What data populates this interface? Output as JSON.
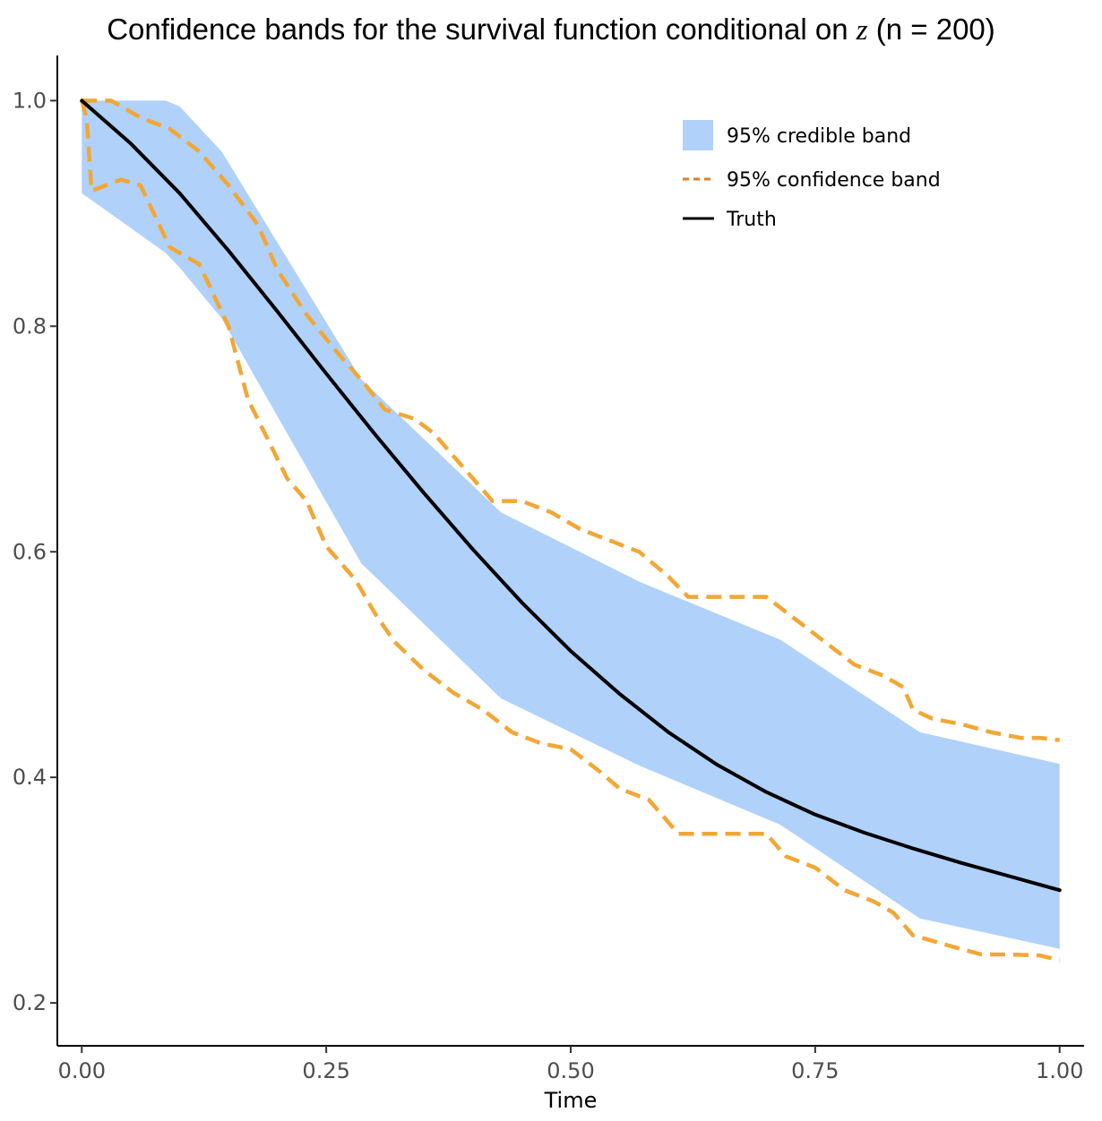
{
  "chart_data": {
    "type": "line",
    "title_prefix": "Confidence bands for the survival function conditional on ",
    "title_var": "z",
    "title_suffix": " (n = 200)",
    "xlabel": "Time",
    "ylabel": "",
    "xlim": [
      -0.025,
      1.025
    ],
    "ylim": [
      0.162,
      1.04
    ],
    "xticks": [
      "0.00",
      "0.25",
      "0.50",
      "0.75",
      "1.00"
    ],
    "yticks": [
      "0.2",
      "0.4",
      "0.6",
      "0.8",
      "1.0"
    ],
    "legend_position": "top-right",
    "colors": {
      "credible_band": "#b0d1f9",
      "confidence_band": "#f2a735",
      "truth": "#000000"
    },
    "series": [
      {
        "name": "Truth",
        "legend": "Truth",
        "x": [
          0,
          0.05,
          0.1,
          0.15,
          0.2,
          0.25,
          0.3,
          0.35,
          0.4,
          0.45,
          0.5,
          0.55,
          0.6,
          0.65,
          0.7,
          0.75,
          0.8,
          0.85,
          0.9,
          0.95,
          1.0
        ],
        "values": [
          1.0,
          0.962,
          0.918,
          0.867,
          0.813,
          0.758,
          0.704,
          0.652,
          0.602,
          0.555,
          0.512,
          0.474,
          0.44,
          0.411,
          0.387,
          0.367,
          0.351,
          0.337,
          0.324,
          0.312,
          0.3
        ]
      },
      {
        "name": "95% credible band",
        "legend": "95% credible band",
        "x": [
          0,
          0.0857,
          0.1,
          0.1429,
          0.2857,
          0.4286,
          0.5714,
          0.7143,
          0.8571,
          1.0
        ],
        "upper": [
          1.0,
          1.0,
          0.995,
          0.955,
          0.753,
          0.635,
          0.573,
          0.522,
          0.44,
          0.412
        ],
        "lower": [
          0.918,
          0.865,
          0.852,
          0.807,
          0.59,
          0.47,
          0.41,
          0.358,
          0.275,
          0.248
        ]
      },
      {
        "name": "95% confidence band",
        "legend": "95% confidence band",
        "x_upper": [
          0,
          0.03,
          0.06,
          0.09,
          0.12,
          0.15,
          0.18,
          0.2,
          0.23,
          0.26,
          0.29,
          0.31,
          0.34,
          0.36,
          0.39,
          0.42,
          0.45,
          0.48,
          0.51,
          0.54,
          0.57,
          0.6,
          0.62,
          0.65,
          0.68,
          0.7,
          0.73,
          0.76,
          0.79,
          0.82,
          0.84,
          0.85,
          0.87,
          0.9,
          0.93,
          0.96,
          0.98,
          1.0
        ],
        "upper": [
          1.0,
          1.0,
          0.985,
          0.975,
          0.955,
          0.925,
          0.89,
          0.85,
          0.81,
          0.778,
          0.748,
          0.726,
          0.718,
          0.705,
          0.675,
          0.645,
          0.645,
          0.635,
          0.62,
          0.61,
          0.6,
          0.578,
          0.56,
          0.56,
          0.56,
          0.56,
          0.54,
          0.52,
          0.5,
          0.49,
          0.48,
          0.46,
          0.452,
          0.447,
          0.44,
          0.435,
          0.435,
          0.433
        ],
        "x_lower": [
          0,
          0.005,
          0.01,
          0.04,
          0.06,
          0.09,
          0.12,
          0.15,
          0.17,
          0.19,
          0.21,
          0.23,
          0.25,
          0.28,
          0.3,
          0.32,
          0.35,
          0.38,
          0.41,
          0.44,
          0.47,
          0.5,
          0.53,
          0.55,
          0.58,
          0.61,
          0.64,
          0.67,
          0.7,
          0.72,
          0.75,
          0.78,
          0.81,
          0.83,
          0.85,
          0.87,
          0.89,
          0.92,
          0.95,
          0.98,
          1.0
        ],
        "lower": [
          1.0,
          0.985,
          0.92,
          0.93,
          0.925,
          0.87,
          0.855,
          0.8,
          0.735,
          0.7,
          0.665,
          0.645,
          0.605,
          0.575,
          0.545,
          0.52,
          0.495,
          0.475,
          0.46,
          0.44,
          0.43,
          0.425,
          0.405,
          0.39,
          0.38,
          0.35,
          0.35,
          0.35,
          0.35,
          0.33,
          0.32,
          0.3,
          0.29,
          0.28,
          0.26,
          0.255,
          0.25,
          0.243,
          0.243,
          0.242,
          0.238
        ]
      }
    ]
  }
}
